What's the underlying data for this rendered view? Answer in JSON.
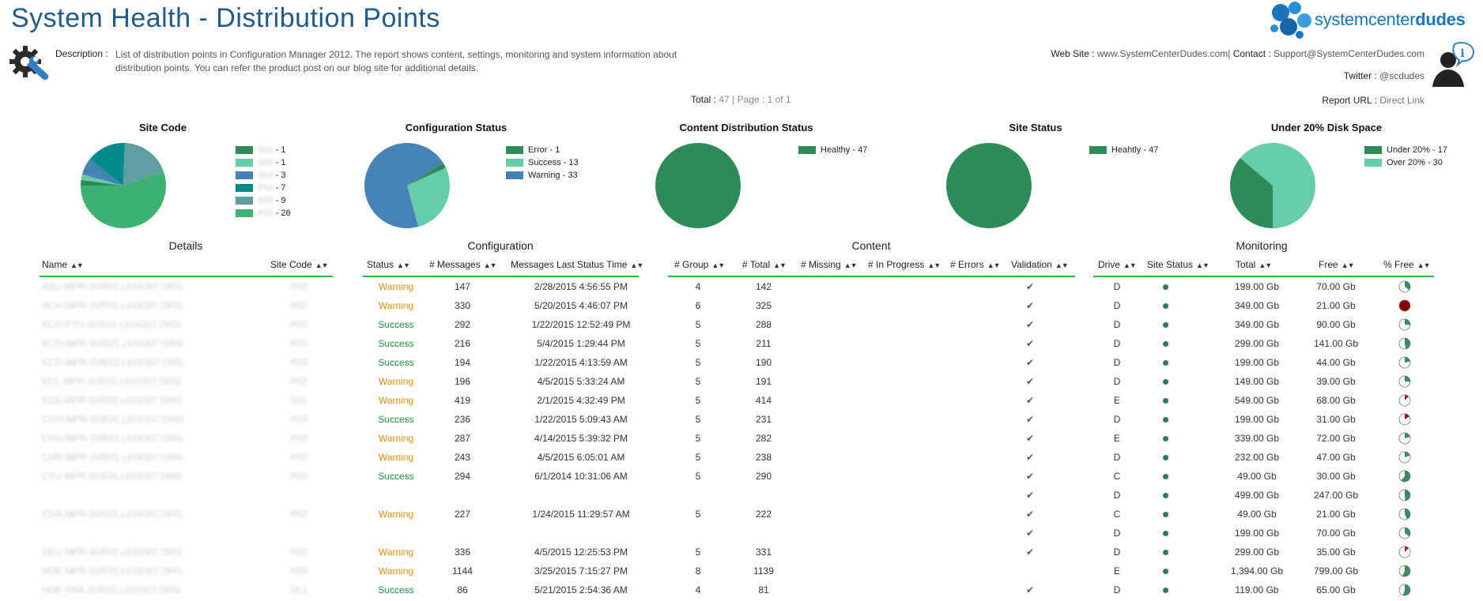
{
  "header": {
    "title": "System Health - Distribution Points",
    "description_label": "Description :",
    "description": "List of distribution points in Configuration Manager 2012. The report shows content, settings, monitoring and system information about distribution points. You can refer the product post on our blog site for additional details.",
    "logo_text_regular": "systemcenter",
    "logo_text_bold": "dudes",
    "website_label": "Web Site :",
    "website": "www.SystemCenterDudes.com|",
    "contact_label": "Contact :",
    "contact": "Support@SystemCenterDudes.com",
    "twitter_label": "Twitter :",
    "twitter": "@scdudes",
    "report_url_label": "Report URL :",
    "report_url": "Direct Link",
    "total_label": "Total :",
    "total": "47",
    "page_label": "| Page :",
    "page": "1 of 1"
  },
  "charts": {
    "site_code": {
      "title": "Site Code",
      "legend": [
        {
          "code": "S01",
          "count": "- 1",
          "color": "#2e8b57"
        },
        {
          "code": "S02",
          "count": "- 1",
          "color": "#66cdaa"
        },
        {
          "code": "S03",
          "count": "- 3",
          "color": "#4682b4"
        },
        {
          "code": "P03",
          "count": "- 7",
          "color": "#008b8b"
        },
        {
          "code": "S05",
          "count": "- 9",
          "color": "#5f9ea0"
        },
        {
          "code": "P02",
          "count": "- 26",
          "color": "#3cb371"
        }
      ]
    },
    "config_status": {
      "title": "Configuration Status",
      "legend": [
        {
          "label": "Error - 1",
          "color": "#2e8b57"
        },
        {
          "label": "Success - 13",
          "color": "#66cdaa"
        },
        {
          "label": "Warning - 33",
          "color": "#4682b4"
        }
      ]
    },
    "content_status": {
      "title": "Content Distribution Status",
      "legend": [
        {
          "label": "Healthy - 47",
          "color": "#2e8b57"
        }
      ]
    },
    "site_status": {
      "title": "Site Status",
      "legend": [
        {
          "label": "Heahtly - 47",
          "color": "#2e8b57"
        }
      ]
    },
    "disk_space": {
      "title": "Under 20% Disk Space",
      "legend": [
        {
          "label": "Under 20% - 17",
          "color": "#2e8b57"
        },
        {
          "label": "Over 20% - 30",
          "color": "#66cdaa"
        }
      ]
    }
  },
  "chart_data": [
    {
      "type": "pie",
      "title": "Site Code",
      "categories": [
        "S01",
        "S02",
        "S03",
        "P03",
        "S05",
        "P02"
      ],
      "values": [
        1,
        1,
        3,
        7,
        9,
        26
      ]
    },
    {
      "type": "pie",
      "title": "Configuration Status",
      "categories": [
        "Error",
        "Success",
        "Warning"
      ],
      "values": [
        1,
        13,
        33
      ]
    },
    {
      "type": "pie",
      "title": "Content Distribution Status",
      "categories": [
        "Healthy"
      ],
      "values": [
        47
      ]
    },
    {
      "type": "pie",
      "title": "Site Status",
      "categories": [
        "Heahtly"
      ],
      "values": [
        47
      ]
    },
    {
      "type": "pie",
      "title": "Under 20% Disk Space",
      "categories": [
        "Under 20%",
        "Over 20%"
      ],
      "values": [
        17,
        30
      ]
    }
  ],
  "table": {
    "sections": {
      "details": "Details",
      "configuration": "Configuration",
      "content": "Content",
      "monitoring": "Monitoring"
    },
    "columns": {
      "name": "Name",
      "site_code": "Site Code",
      "status": "Status",
      "messages": "# Messages",
      "last_status": "Messages Last Status Time",
      "group": "# Group",
      "total": "# Total",
      "missing": "# Missing",
      "in_progress": "# In Progress",
      "errors": "# Errors",
      "validation": "Validation",
      "drive": "Drive",
      "site_status": "Site Status",
      "disk_total": "Total",
      "free": "Free",
      "pct_free": "% Free"
    },
    "rows": [
      {
        "name": "ABU-MPR-SVR01.LEGO07.ORG",
        "site": "P02",
        "status": "Warning",
        "messages": "147",
        "time": "2/28/2015 4:56:55 PM",
        "group": "4",
        "total": "142",
        "check": true,
        "drive": "D",
        "dot": true,
        "disk_total": "199.00 Gb",
        "free": "70.00 Gb",
        "pct": 0.35
      },
      {
        "name": "ACH-MPR-SVE01.LEGO07.ORG",
        "site": "P02",
        "status": "Warning",
        "messages": "330",
        "time": "5/20/2015 4:46:07 PM",
        "group": "6",
        "total": "325",
        "check": true,
        "drive": "D",
        "dot": true,
        "disk_total": "349.00 Gb",
        "free": "21.00 Gb",
        "pct": 0.06
      },
      {
        "name": "ECO-FTO-SVE01.LEGO07.ORG",
        "site": "P03",
        "status": "Success",
        "messages": "292",
        "time": "1/22/2015 12:52:49 PM",
        "group": "5",
        "total": "288",
        "check": true,
        "drive": "D",
        "dot": true,
        "disk_total": "349.00 Gb",
        "free": "90.00 Gb",
        "pct": 0.26
      },
      {
        "name": "ECO-MPR-SVE01.LEGO07.ORG",
        "site": "P03",
        "status": "Success",
        "messages": "216",
        "time": "5/4/2015 1:29:44 PM",
        "group": "5",
        "total": "211",
        "check": true,
        "drive": "D",
        "dot": true,
        "disk_total": "299.00 Gb",
        "free": "141.00 Gb",
        "pct": 0.47
      },
      {
        "name": "ECO-MPR-SVE02.LEGO07.ORG",
        "site": "P03",
        "status": "Success",
        "messages": "194",
        "time": "1/22/2015 4:13:59 AM",
        "group": "5",
        "total": "190",
        "check": true,
        "drive": "D",
        "dot": true,
        "disk_total": "199.00 Gb",
        "free": "44.00 Gb",
        "pct": 0.22
      },
      {
        "name": "ECL-MPR-SVE01.LEGO07.ORG",
        "site": "P02",
        "status": "Warning",
        "messages": "196",
        "time": "4/5/2015 5:33:24 AM",
        "group": "5",
        "total": "191",
        "check": true,
        "drive": "D",
        "dot": true,
        "disk_total": "149.00 Gb",
        "free": "39.00 Gb",
        "pct": 0.26
      },
      {
        "name": "ECE-MPR-SVE02.LEGO07.ORG",
        "site": "S01",
        "status": "Warning",
        "messages": "419",
        "time": "2/1/2015 4:32:49 PM",
        "group": "5",
        "total": "414",
        "check": true,
        "drive": "E",
        "dot": true,
        "disk_total": "549.00 Gb",
        "free": "68.00 Gb",
        "pct": 0.12
      },
      {
        "name": "CGH-MPR-SVE01.LEGO07.ORG",
        "site": "P03",
        "status": "Success",
        "messages": "236",
        "time": "1/22/2015 5:09:43 AM",
        "group": "5",
        "total": "231",
        "check": true,
        "drive": "D",
        "dot": true,
        "disk_total": "199.00 Gb",
        "free": "31.00 Gb",
        "pct": 0.16
      },
      {
        "name": "CHU-MPR-SVE01.LEGO07.ORG",
        "site": "P02",
        "status": "Warning",
        "messages": "287",
        "time": "4/14/2015 5:39:32 PM",
        "group": "5",
        "total": "282",
        "check": true,
        "drive": "E",
        "dot": true,
        "disk_total": "339.00 Gb",
        "free": "72.00 Gb",
        "pct": 0.21
      },
      {
        "name": "CHR-MPR-SVE01.LEGO07.ORG",
        "site": "P02",
        "status": "Warning",
        "messages": "243",
        "time": "4/5/2015 6:05:01 AM",
        "group": "5",
        "total": "238",
        "check": true,
        "drive": "D",
        "dot": true,
        "disk_total": "232.00 Gb",
        "free": "47.00 Gb",
        "pct": 0.2
      },
      {
        "name": "CTU-MPR-SVE01.LEGO07.ORG",
        "site": "P03",
        "status": "Success",
        "messages": "294",
        "time": "6/1/2014 10:31:06 AM",
        "group": "5",
        "total": "290",
        "check": true,
        "drive": "C",
        "dot": true,
        "disk_total": "49.00 Gb",
        "free": "30.00 Gb",
        "pct": 0.61
      },
      {
        "name": "",
        "site": "",
        "status": "",
        "messages": "",
        "time": "",
        "group": "",
        "total": "",
        "check": true,
        "drive": "D",
        "dot": true,
        "disk_total": "499.00 Gb",
        "free": "247.00 Gb",
        "pct": 0.49
      },
      {
        "name": "CDA-MPR-SVE01.LEGO07.ORG",
        "site": "P02",
        "status": "Warning",
        "messages": "227",
        "time": "1/24/2015 11:29:57 AM",
        "group": "5",
        "total": "222",
        "check": true,
        "drive": "C",
        "dot": true,
        "disk_total": "49.00 Gb",
        "free": "21.00 Gb",
        "pct": 0.43
      },
      {
        "name": "",
        "site": "",
        "status": "",
        "messages": "",
        "time": "",
        "group": "",
        "total": "",
        "check": true,
        "drive": "D",
        "dot": true,
        "disk_total": "199.00 Gb",
        "free": "70.00 Gb",
        "pct": 0.35
      },
      {
        "name": "DEU-MPR-SVE01.LEGO07.ORG",
        "site": "P02",
        "status": "Warning",
        "messages": "336",
        "time": "4/5/2015 12:25:53 PM",
        "group": "5",
        "total": "331",
        "check": true,
        "drive": "D",
        "dot": true,
        "disk_total": "299.00 Gb",
        "free": "35.00 Gb",
        "pct": 0.12
      },
      {
        "name": "HDE-MPR-SVE02.LEGO07.ORG",
        "site": "P03",
        "status": "Warning",
        "messages": "1144",
        "time": "3/25/2015 7:15:27 PM",
        "group": "8",
        "total": "1139",
        "check": false,
        "drive": "E",
        "dot": true,
        "disk_total": "1,394.00 Gb",
        "free": "799.00 Gb",
        "pct": 0.57
      },
      {
        "name": "HDE-SRA-SVE01.LEGO07.ORG",
        "site": "DL1",
        "status": "Success",
        "messages": "86",
        "time": "5/21/2015 2:54:36 AM",
        "group": "4",
        "total": "81",
        "check": true,
        "drive": "D",
        "dot": true,
        "disk_total": "119.00 Gb",
        "free": "65.00 Gb",
        "pct": 0.55
      }
    ]
  }
}
